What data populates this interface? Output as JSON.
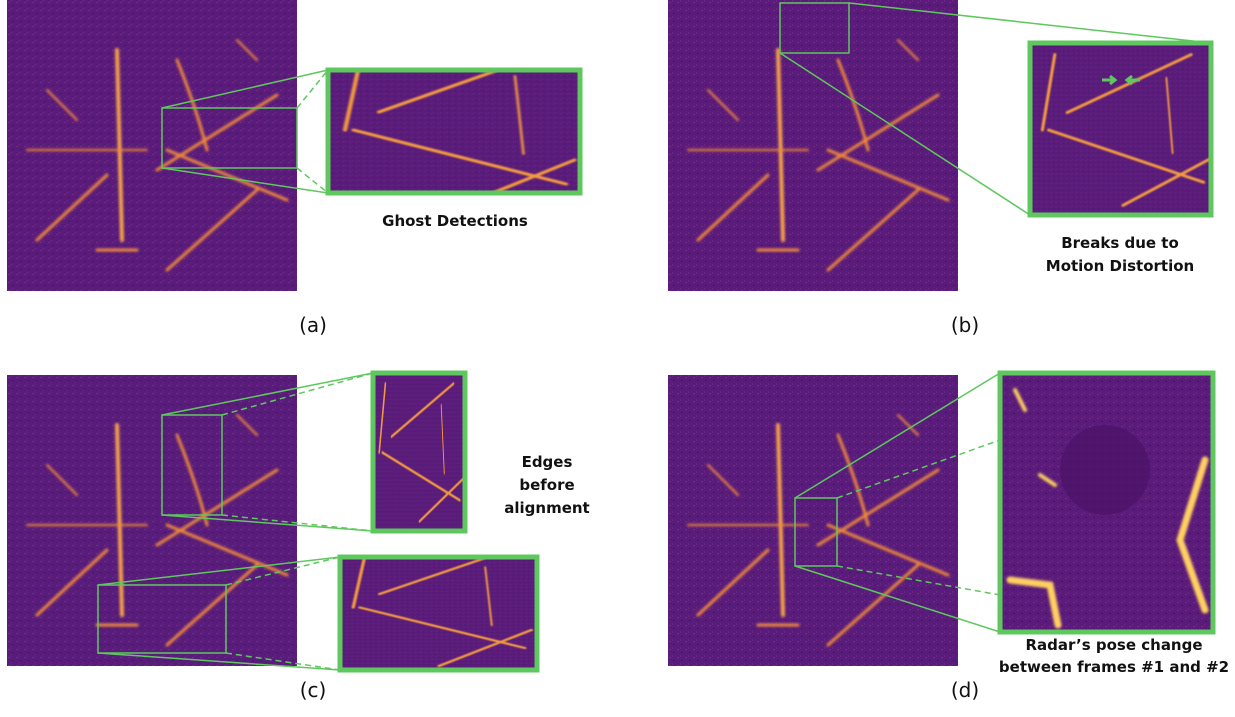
{
  "panels": [
    {
      "caption": "(a)",
      "annotation": [
        "Ghost Detections"
      ]
    },
    {
      "caption": "(b)",
      "annotation": [
        "Breaks due to",
        "Motion Distortion"
      ]
    },
    {
      "caption": "(c)",
      "annotation": [
        "Edges",
        "before",
        "alignment"
      ]
    },
    {
      "caption": "(d)",
      "annotation": [
        "Radar’s pose change",
        "between frames #1 and #2"
      ]
    }
  ]
}
